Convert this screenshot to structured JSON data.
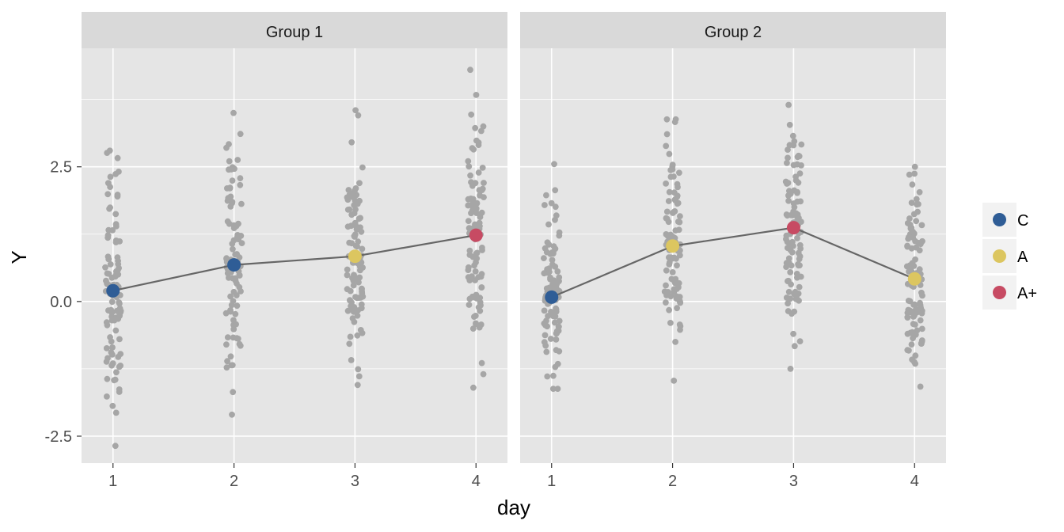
{
  "chart_data": {
    "type": "scatter",
    "xlabel": "day",
    "ylabel": "Y",
    "x_ticks": [
      "1",
      "2",
      "3",
      "4"
    ],
    "y_ticks": [
      {
        "value": -2.5,
        "label": "-2.5"
      },
      {
        "value": 0.0,
        "label": "0.0"
      },
      {
        "value": 2.5,
        "label": "2.5"
      }
    ],
    "xlim": [
      0.74,
      4.26
    ],
    "ylim": [
      -3.0,
      4.7
    ],
    "grid": true,
    "legend_position": "right",
    "legend": [
      {
        "label": "C",
        "color": "#2f5d96"
      },
      {
        "label": "A",
        "color": "#dcc660"
      },
      {
        "label": "A+",
        "color": "#c74b63"
      }
    ],
    "colors": {
      "panel_background": "#e5e5e5",
      "strip_background": "#d9d9d9",
      "gridline": "#ffffff",
      "jitter_points": "#a6a6a6",
      "mean_line": "#666666"
    },
    "panels": [
      {
        "title": "Group 1",
        "means": [
          {
            "day": 1,
            "y": 0.2,
            "category": "C"
          },
          {
            "day": 2,
            "y": 0.68,
            "category": "C"
          },
          {
            "day": 3,
            "y": 0.84,
            "category": "A"
          },
          {
            "day": 4,
            "y": 1.23,
            "category": "A+"
          }
        ],
        "ranges": [
          {
            "day": 1,
            "min": -2.68,
            "max": 2.8
          },
          {
            "day": 2,
            "min": -2.1,
            "max": 3.5
          },
          {
            "day": 3,
            "min": -1.55,
            "max": 3.55
          },
          {
            "day": 4,
            "min": -1.6,
            "max": 4.3
          }
        ]
      },
      {
        "title": "Group 2",
        "means": [
          {
            "day": 1,
            "y": 0.08,
            "category": "C"
          },
          {
            "day": 2,
            "y": 1.03,
            "category": "A"
          },
          {
            "day": 3,
            "y": 1.37,
            "category": "A+"
          },
          {
            "day": 4,
            "y": 0.42,
            "category": "A"
          }
        ],
        "ranges": [
          {
            "day": 1,
            "min": -1.62,
            "max": 2.55
          },
          {
            "day": 2,
            "min": -1.47,
            "max": 3.38
          },
          {
            "day": 3,
            "min": -1.25,
            "max": 3.65
          },
          {
            "day": 4,
            "min": -1.58,
            "max": 2.5
          }
        ]
      }
    ]
  }
}
